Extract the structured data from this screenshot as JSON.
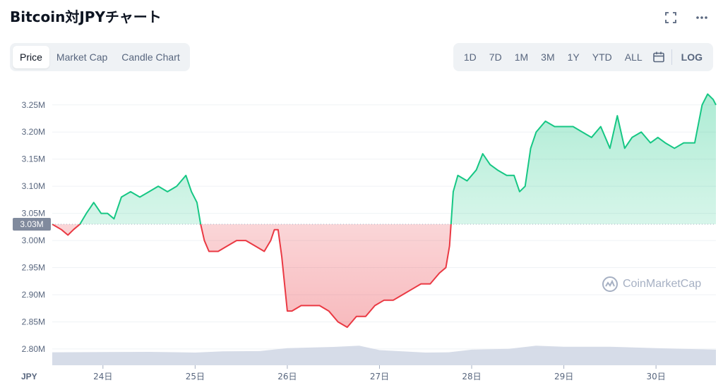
{
  "title": "Bitcoin対JPYチャート",
  "icons": {
    "expand": "expand-icon",
    "more": "more-icon",
    "calendar": "calendar-icon"
  },
  "tabs": [
    {
      "label": "Price",
      "active": true
    },
    {
      "label": "Market Cap",
      "active": false
    },
    {
      "label": "Candle Chart",
      "active": false
    }
  ],
  "ranges": [
    "1D",
    "7D",
    "1M",
    "3M",
    "1Y",
    "YTD",
    "ALL"
  ],
  "log_label": "LOG",
  "watermark": "CoinMarketCap",
  "colors": {
    "up": "#16c784",
    "down": "#ea3943",
    "volume": "#cfd6e4",
    "axis_text": "#58667e"
  },
  "chart_data": {
    "type": "line",
    "currency_label": "JPY",
    "baseline": 3.03,
    "baseline_label": "3.03M",
    "y_unit": "M",
    "ylim": [
      2.77,
      3.29
    ],
    "y_ticks": [
      "3.25M",
      "3.20M",
      "3.15M",
      "3.10M",
      "3.05M",
      "3.00M",
      "2.95M",
      "2.90M",
      "2.85M",
      "2.80M"
    ],
    "y_tick_values": [
      3.25,
      3.2,
      3.15,
      3.1,
      3.05,
      3.0,
      2.95,
      2.9,
      2.85,
      2.8
    ],
    "x_ticks": [
      "24日",
      "25日",
      "26日",
      "27日",
      "28日",
      "29日",
      "30日"
    ],
    "x_tick_positions": [
      24,
      25,
      26,
      27,
      28,
      29,
      30
    ],
    "xlim": [
      23.45,
      30.65
    ],
    "grid": true,
    "series": [
      {
        "values": [
          [
            23.45,
            3.03
          ],
          [
            23.55,
            3.02
          ],
          [
            23.62,
            3.01
          ],
          [
            23.68,
            3.02
          ],
          [
            23.75,
            3.03
          ],
          [
            23.82,
            3.05
          ],
          [
            23.9,
            3.07
          ],
          [
            23.98,
            3.05
          ],
          [
            24.05,
            3.05
          ],
          [
            24.12,
            3.04
          ],
          [
            24.2,
            3.08
          ],
          [
            24.3,
            3.09
          ],
          [
            24.4,
            3.08
          ],
          [
            24.5,
            3.09
          ],
          [
            24.6,
            3.1
          ],
          [
            24.7,
            3.09
          ],
          [
            24.8,
            3.1
          ],
          [
            24.9,
            3.12
          ],
          [
            24.96,
            3.09
          ],
          [
            25.02,
            3.07
          ],
          [
            25.06,
            3.03
          ],
          [
            25.1,
            3.0
          ],
          [
            25.15,
            2.98
          ],
          [
            25.25,
            2.98
          ],
          [
            25.35,
            2.99
          ],
          [
            25.45,
            3.0
          ],
          [
            25.55,
            3.0
          ],
          [
            25.65,
            2.99
          ],
          [
            25.75,
            2.98
          ],
          [
            25.82,
            3.0
          ],
          [
            25.86,
            3.02
          ],
          [
            25.9,
            3.02
          ],
          [
            25.94,
            2.97
          ],
          [
            26.0,
            2.87
          ],
          [
            26.05,
            2.87
          ],
          [
            26.15,
            2.88
          ],
          [
            26.25,
            2.88
          ],
          [
            26.35,
            2.88
          ],
          [
            26.45,
            2.87
          ],
          [
            26.55,
            2.85
          ],
          [
            26.65,
            2.84
          ],
          [
            26.75,
            2.86
          ],
          [
            26.85,
            2.86
          ],
          [
            26.95,
            2.88
          ],
          [
            27.05,
            2.89
          ],
          [
            27.15,
            2.89
          ],
          [
            27.25,
            2.9
          ],
          [
            27.35,
            2.91
          ],
          [
            27.45,
            2.92
          ],
          [
            27.55,
            2.92
          ],
          [
            27.65,
            2.94
          ],
          [
            27.72,
            2.95
          ],
          [
            27.76,
            2.99
          ],
          [
            27.8,
            3.09
          ],
          [
            27.85,
            3.12
          ],
          [
            27.95,
            3.11
          ],
          [
            28.05,
            3.13
          ],
          [
            28.12,
            3.16
          ],
          [
            28.2,
            3.14
          ],
          [
            28.28,
            3.13
          ],
          [
            28.38,
            3.12
          ],
          [
            28.46,
            3.12
          ],
          [
            28.52,
            3.09
          ],
          [
            28.58,
            3.1
          ],
          [
            28.64,
            3.17
          ],
          [
            28.7,
            3.2
          ],
          [
            28.8,
            3.22
          ],
          [
            28.9,
            3.21
          ],
          [
            29.0,
            3.21
          ],
          [
            29.1,
            3.21
          ],
          [
            29.2,
            3.2
          ],
          [
            29.3,
            3.19
          ],
          [
            29.4,
            3.21
          ],
          [
            29.5,
            3.17
          ],
          [
            29.58,
            3.23
          ],
          [
            29.66,
            3.17
          ],
          [
            29.74,
            3.19
          ],
          [
            29.84,
            3.2
          ],
          [
            29.94,
            3.18
          ],
          [
            30.02,
            3.19
          ],
          [
            30.1,
            3.18
          ],
          [
            30.2,
            3.17
          ],
          [
            30.3,
            3.18
          ],
          [
            30.42,
            3.18
          ],
          [
            30.5,
            3.25
          ],
          [
            30.56,
            3.27
          ],
          [
            30.62,
            3.26
          ],
          [
            30.65,
            3.25
          ]
        ]
      },
      {
        "name": "volume",
        "values": [
          [
            23.45,
            0.53
          ],
          [
            24.0,
            0.54
          ],
          [
            24.5,
            0.55
          ],
          [
            25.0,
            0.52
          ],
          [
            25.3,
            0.57
          ],
          [
            25.7,
            0.58
          ],
          [
            26.0,
            0.7
          ],
          [
            26.5,
            0.75
          ],
          [
            26.78,
            0.8
          ],
          [
            27.0,
            0.62
          ],
          [
            27.5,
            0.52
          ],
          [
            27.75,
            0.53
          ],
          [
            28.0,
            0.64
          ],
          [
            28.4,
            0.67
          ],
          [
            28.7,
            0.8
          ],
          [
            29.0,
            0.76
          ],
          [
            29.5,
            0.76
          ],
          [
            30.0,
            0.7
          ],
          [
            30.3,
            0.67
          ],
          [
            30.65,
            0.64
          ]
        ]
      }
    ]
  }
}
